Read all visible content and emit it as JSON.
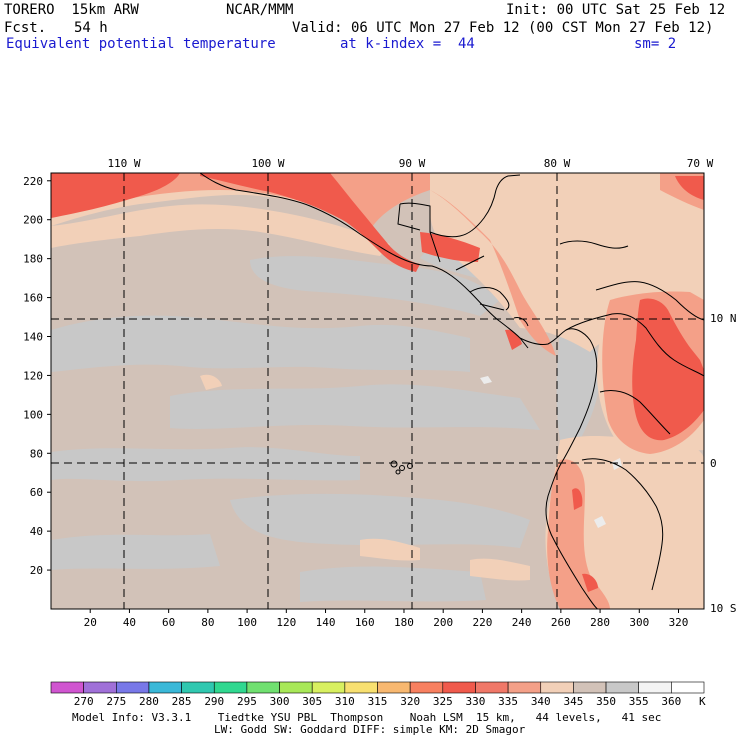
{
  "header": {
    "model": "TORERO  15km ARW",
    "org": "NCAR/MMM",
    "init": "Init: 00 UTC Sat 25 Feb 12",
    "fcst_label": "Fcst.",
    "fcst_value": "54 h",
    "valid": "Valid: 06 UTC Mon 27 Feb 12 (00 CST Mon 27 Feb 12)",
    "field": "Equivalent potential temperature",
    "level": "at k-index =  44",
    "smooth": "sm= 2"
  },
  "map": {
    "top_lon_labels": [
      "110 W",
      "100 W",
      "90 W",
      "80 W",
      "70 W"
    ],
    "right_lat_labels": [
      "10 N",
      "0",
      "10 S"
    ],
    "left_axis_ticks": [
      "220",
      "200",
      "180",
      "160",
      "140",
      "120",
      "100",
      "80",
      "60",
      "40",
      "20"
    ],
    "bottom_axis_ticks": [
      "20",
      "40",
      "60",
      "80",
      "100",
      "120",
      "140",
      "160",
      "180",
      "200",
      "220",
      "240",
      "260",
      "280",
      "300",
      "320"
    ],
    "x_max": 333,
    "y_max": 224,
    "colors": {
      "background_cool": "#c8c8c8",
      "background_warm": "#d2c2b8",
      "peach": "#f2d0b8",
      "salmon": "#f4a088",
      "red": "#f05a4c",
      "coast": "#000000"
    }
  },
  "colorbar": {
    "labels": [
      "270",
      "275",
      "280",
      "285",
      "290",
      "295",
      "300",
      "305",
      "310",
      "315",
      "320",
      "325",
      "330",
      "335",
      "340",
      "345",
      "350",
      "355",
      "360"
    ],
    "unit": "K",
    "colors": [
      "#d055d0",
      "#a070d8",
      "#7878e8",
      "#3ab8d8",
      "#30c8b0",
      "#30d890",
      "#70e070",
      "#a8e858",
      "#d8f060",
      "#f8e070",
      "#f8b870",
      "#f88060",
      "#f05a4c",
      "#f07868",
      "#f4a088",
      "#f2d0b8",
      "#d2c2b8",
      "#c8c8c8",
      "#f4f4f4",
      "#ffffff"
    ]
  },
  "footer": {
    "line1": "Model Info: V3.3.1    Tiedtke YSU PBL  Thompson    Noah LSM  15 km,   44 levels,   41 sec",
    "line2": "LW: Godd SW: Goddard DIFF: simple KM: 2D Smagor"
  }
}
